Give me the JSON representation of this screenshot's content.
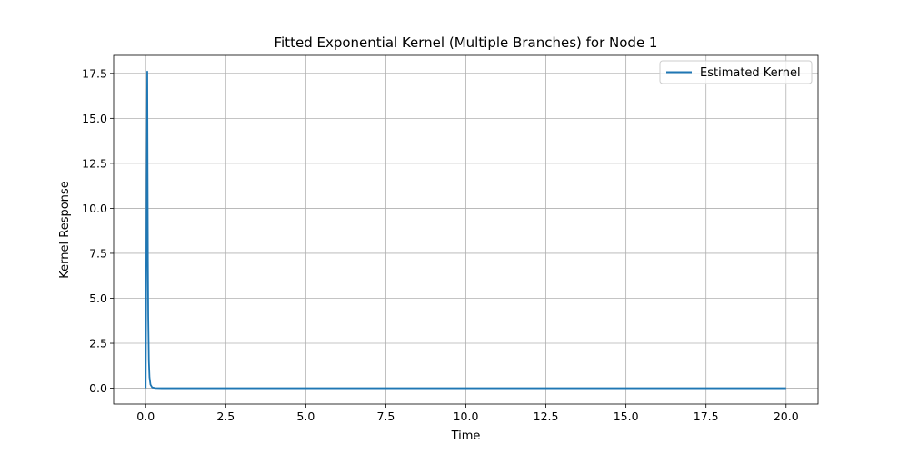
{
  "chart_data": {
    "type": "line",
    "title": "Fitted Exponential Kernel (Multiple Branches) for Node 1",
    "xlabel": "Time",
    "ylabel": "Kernel Response",
    "xlim": [
      -1.0,
      21.0
    ],
    "ylim": [
      -0.88,
      18.5
    ],
    "xticks": [
      0.0,
      2.5,
      5.0,
      7.5,
      10.0,
      12.5,
      15.0,
      17.5,
      20.0
    ],
    "yticks": [
      0.0,
      2.5,
      5.0,
      7.5,
      10.0,
      12.5,
      15.0,
      17.5
    ],
    "xtick_labels": [
      "0.0",
      "2.5",
      "5.0",
      "7.5",
      "10.0",
      "12.5",
      "15.0",
      "17.5",
      "20.0"
    ],
    "ytick_labels": [
      "0.0",
      "2.5",
      "5.0",
      "7.5",
      "10.0",
      "12.5",
      "15.0",
      "17.5"
    ],
    "grid": true,
    "legend_position": "top-right",
    "series": [
      {
        "name": "Estimated Kernel",
        "color": "#1f77b4",
        "x": [
          0.0,
          0.05,
          0.06,
          0.07,
          0.08,
          0.1,
          0.12,
          0.15,
          0.2,
          0.3,
          0.5,
          1.0,
          2.0,
          5.0,
          10.0,
          15.0,
          20.0
        ],
        "y": [
          0.0,
          17.6,
          12.0,
          7.0,
          4.0,
          1.5,
          0.6,
          0.2,
          0.05,
          0.01,
          0.0,
          0.0,
          0.0,
          0.0,
          0.0,
          0.0,
          0.0
        ]
      }
    ]
  }
}
